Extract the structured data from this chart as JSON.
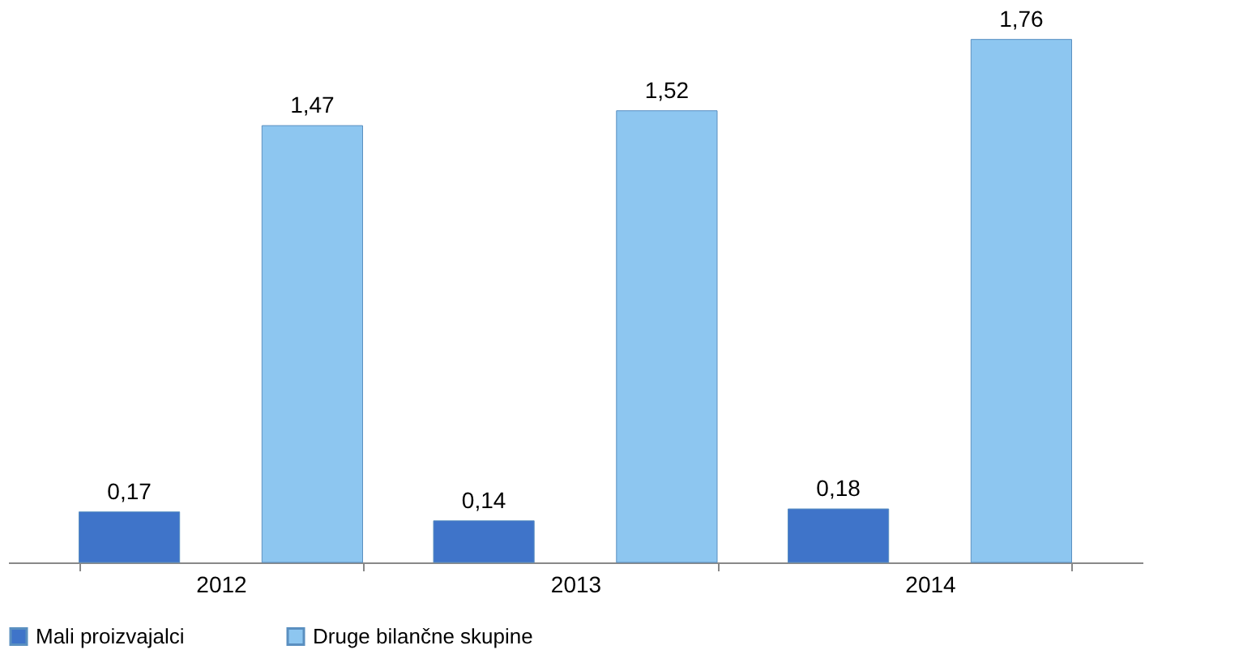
{
  "chart_data": {
    "type": "bar",
    "categories": [
      "2012",
      "2013",
      "2014"
    ],
    "series": [
      {
        "name": "Mali proizvajalci",
        "color": "#3f74c9",
        "values": [
          0.17,
          0.14,
          0.18
        ],
        "value_labels": [
          "0,17",
          "0,14",
          "0,18"
        ]
      },
      {
        "name": "Druge bilančne skupine",
        "color": "#8dc6f0",
        "values": [
          1.47,
          1.52,
          1.76
        ],
        "value_labels": [
          "1,47",
          "1,52",
          "1,76"
        ]
      }
    ],
    "legend": "bottom",
    "grid": false
  }
}
